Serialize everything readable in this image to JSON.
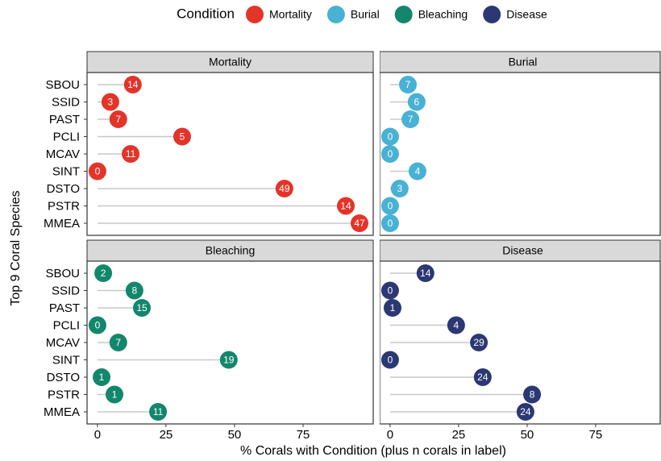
{
  "chart_data": {
    "type": "lollipop",
    "legend_title": "Condition",
    "x_label": "% Corals with Condition (plus n corals in label)",
    "y_label": "Top 9 Coral Species",
    "categories": [
      "SBOU",
      "SSID",
      "PAST",
      "PCLI",
      "MCAV",
      "SINT",
      "DSTO",
      "PSTR",
      "MMEA"
    ],
    "xlim": [
      -3.8,
      100.6
    ],
    "xticks": [
      0,
      25,
      50,
      75
    ],
    "legend": "top",
    "series": [
      {
        "name": "Mortality",
        "color": "#e3342a",
        "values": [
          12.9,
          4.7,
          7.6,
          30.9,
          12.1,
          0,
          68.2,
          90.6,
          95.6
        ],
        "n": [
          14,
          3,
          7,
          5,
          11,
          0,
          49,
          14,
          47
        ]
      },
      {
        "name": "Burial",
        "color": "#48b1d4",
        "values": [
          6.5,
          9.7,
          7.4,
          0,
          0,
          10,
          3.5,
          0,
          0
        ],
        "n": [
          7,
          6,
          7,
          0,
          0,
          4,
          3,
          0,
          0
        ]
      },
      {
        "name": "Bleaching",
        "color": "#12876b",
        "values": [
          2.1,
          13.5,
          16.2,
          0,
          7.6,
          47.9,
          1.5,
          6.2,
          22.1
        ],
        "n": [
          2,
          8,
          15,
          0,
          7,
          19,
          1,
          1,
          11
        ]
      },
      {
        "name": "Disease",
        "color": "#2b3874",
        "values": [
          12.9,
          0,
          0.9,
          24.1,
          32.4,
          0,
          33.8,
          51.8,
          49.4
        ],
        "n": [
          14,
          0,
          1,
          4,
          29,
          0,
          24,
          8,
          24
        ]
      }
    ]
  }
}
